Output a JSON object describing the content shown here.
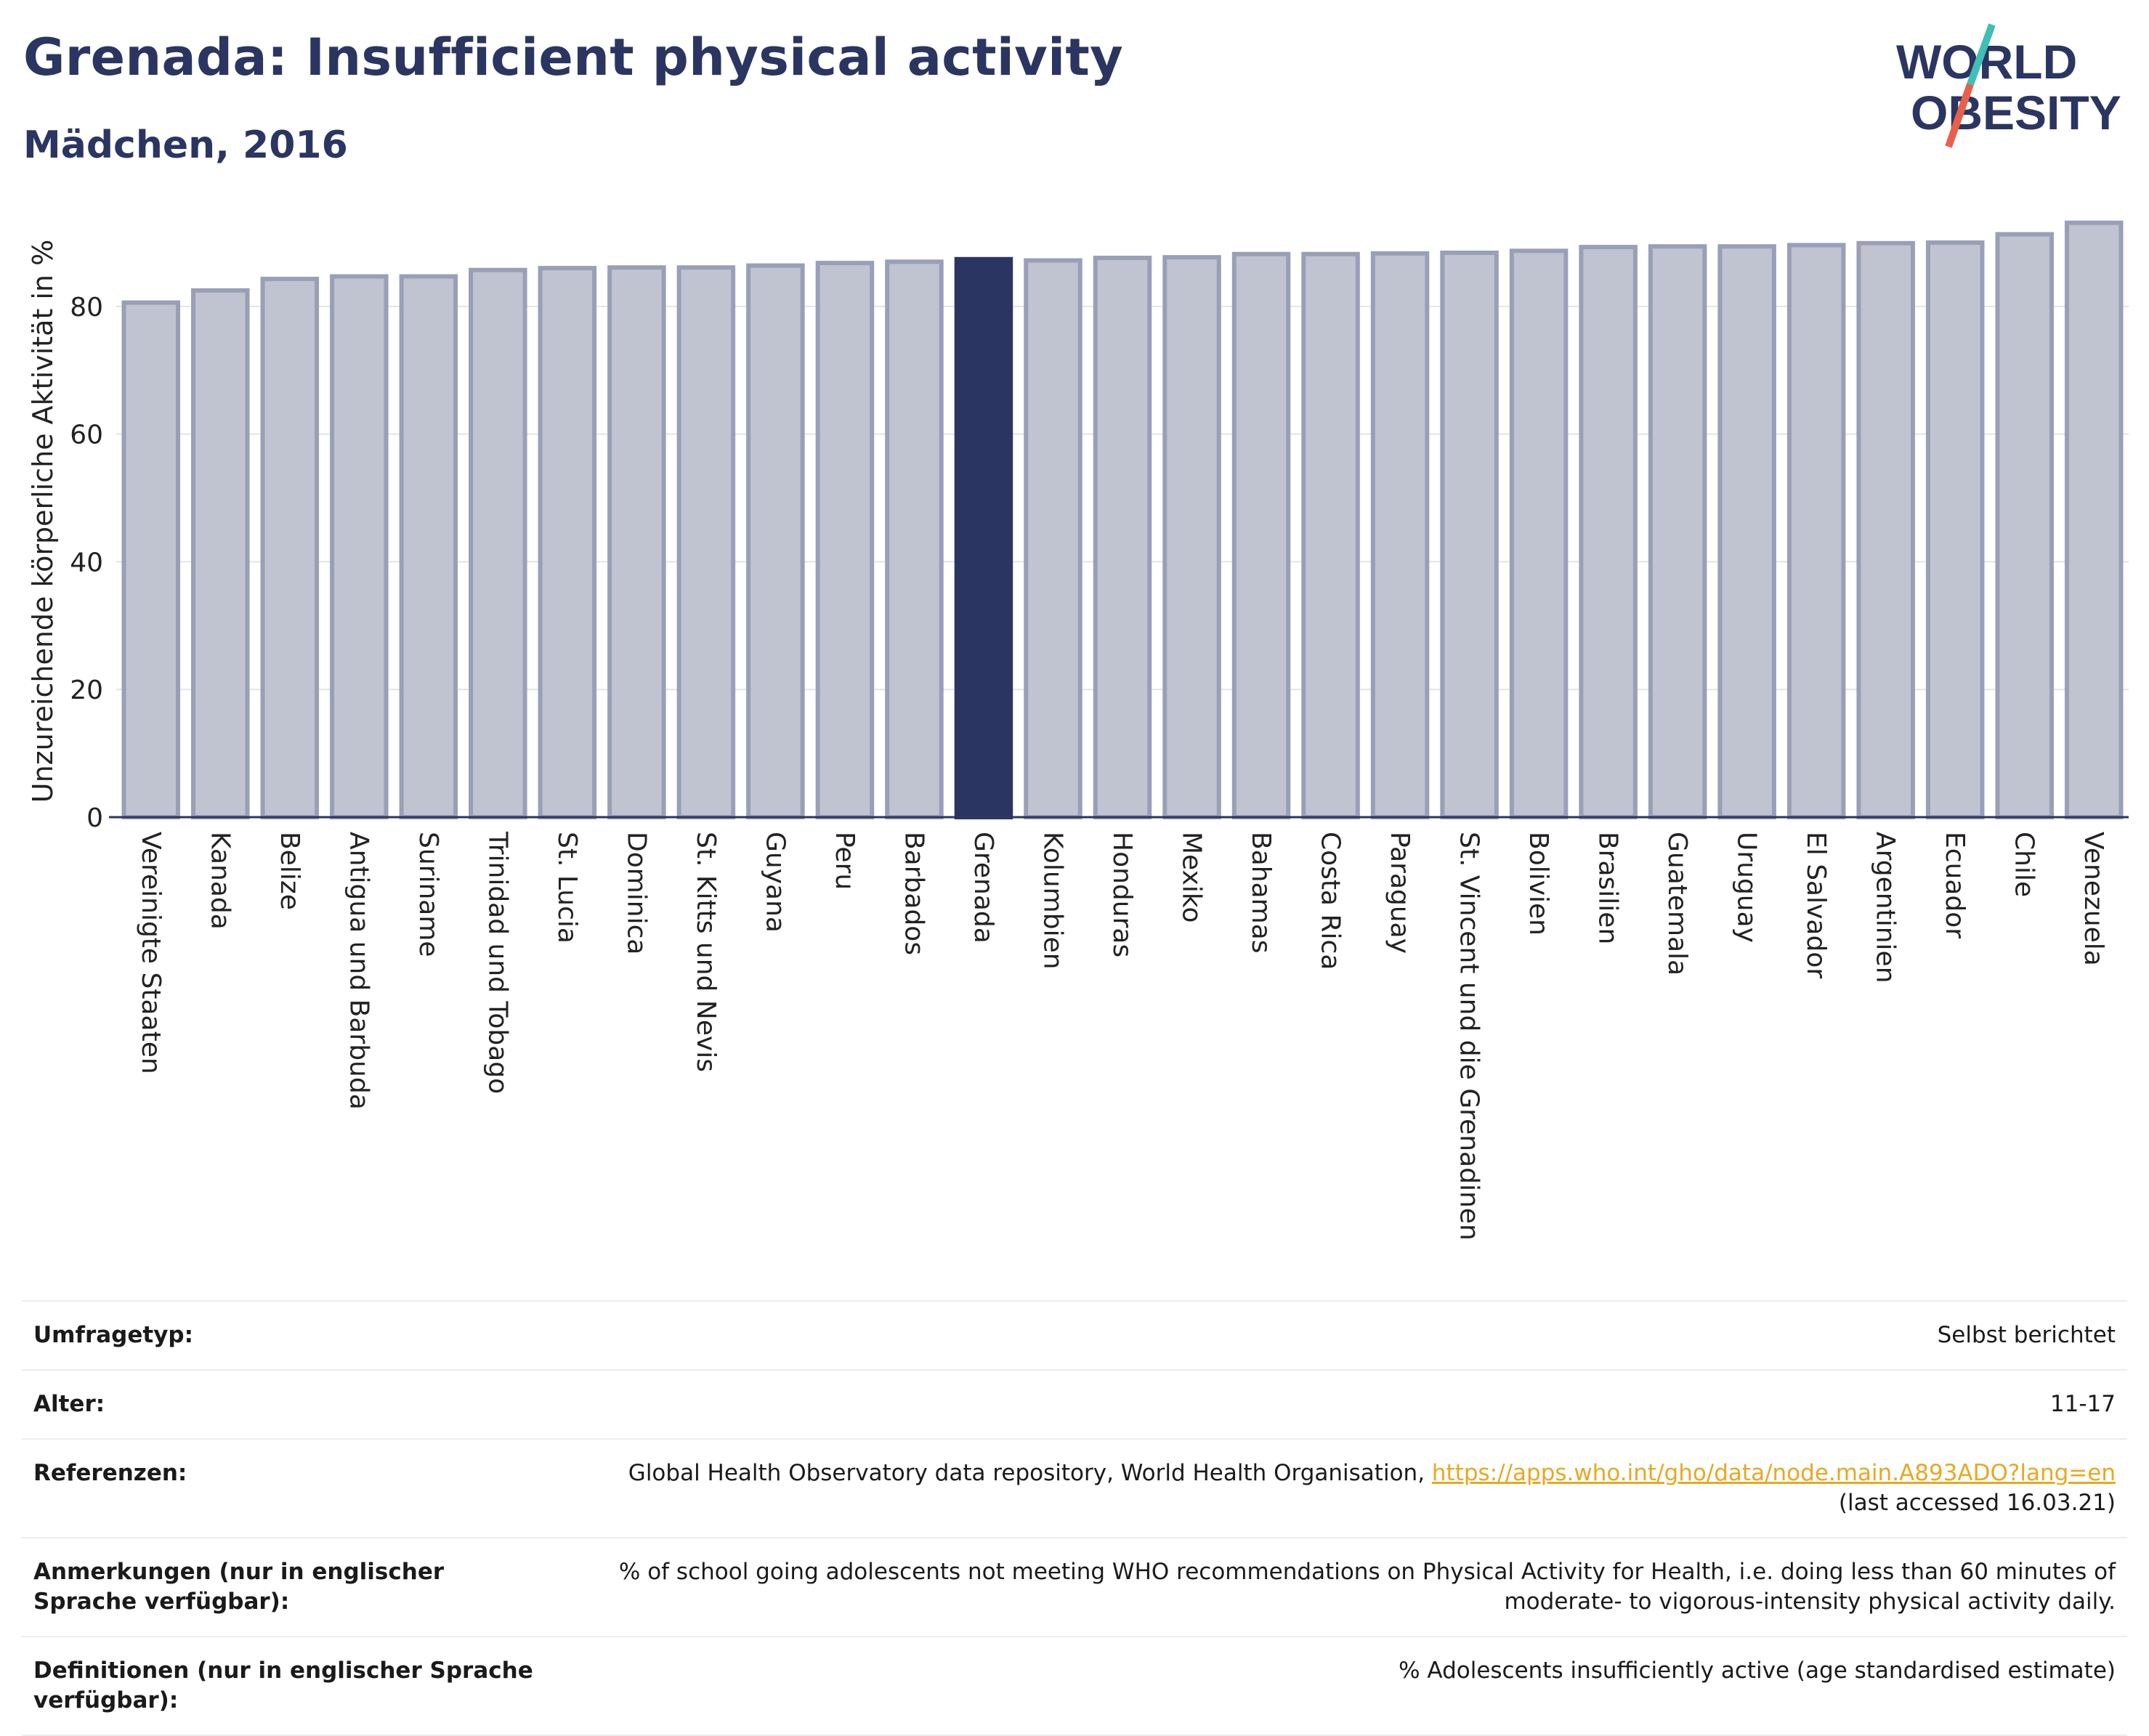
{
  "header": {
    "title": "Grenada: Insufficient physical activity",
    "subtitle": "Mädchen, 2016"
  },
  "logo": {
    "line1": "WORLD",
    "line2": "OBESITY",
    "colors": {
      "text": "#2b3561",
      "slash_teal": "#3fbfb5",
      "slash_coral": "#e8604c"
    }
  },
  "chart_data": {
    "type": "bar",
    "ylabel": "Unzureichende körperliche Aktivität in %",
    "xlabel": "",
    "ylim": [
      0,
      95
    ],
    "yticks": [
      0,
      20,
      40,
      60,
      80
    ],
    "grid": true,
    "highlight": "Grenada",
    "colors": {
      "bar": "#c0c3d0",
      "bar_border": "#9a9fb8",
      "highlight": "#2b3561"
    },
    "categories": [
      "Vereinigte Staaten",
      "Kanada",
      "Belize",
      "Antigua und Barbuda",
      "Suriname",
      "Trinidad und Tobago",
      "St. Lucia",
      "Dominica",
      "St. Kitts und Nevis",
      "Guyana",
      "Peru",
      "Barbados",
      "Grenada",
      "Kolumbien",
      "Honduras",
      "Mexiko",
      "Bahamas",
      "Costa Rica",
      "Paraguay",
      "St. Vincent und die Grenadinen",
      "Bolivien",
      "Brasilien",
      "Guatemala",
      "Uruguay",
      "El Salvador",
      "Argentinien",
      "Ecuador",
      "Chile",
      "Venezuela"
    ],
    "values": [
      80.6,
      82.5,
      84.3,
      84.7,
      84.7,
      85.7,
      86.0,
      86.1,
      86.1,
      86.4,
      86.8,
      87.0,
      87.4,
      87.2,
      87.6,
      87.7,
      88.2,
      88.2,
      88.3,
      88.4,
      88.7,
      89.3,
      89.4,
      89.4,
      89.6,
      89.9,
      90.0,
      91.3,
      93.1
    ]
  },
  "meta": {
    "survey_label": "Umfragetyp:",
    "survey_value": "Selbst berichtet",
    "age_label": "Alter:",
    "age_value": "11-17",
    "ref_label": "Referenzen:",
    "ref_text": "Global Health Observatory data repository, World Health Organisation, ",
    "ref_link": "https://apps.who.int/gho/data/node.main.A893ADO?lang=en",
    "ref_accessed": "(last accessed 16.03.21)",
    "notes_label": "Anmerkungen (nur in englischer Sprache verfügbar):",
    "notes_value": "% of school going adolescents not meeting WHO recommendations on Physical Activity for Health, i.e. doing less than 60 minutes of moderate- to vigorous-intensity physical activity daily.",
    "def_label": "Definitionen (nur in englischer Sprache verfügbar):",
    "def_value": "% Adolescents insufficiently active (age standardised estimate)"
  }
}
